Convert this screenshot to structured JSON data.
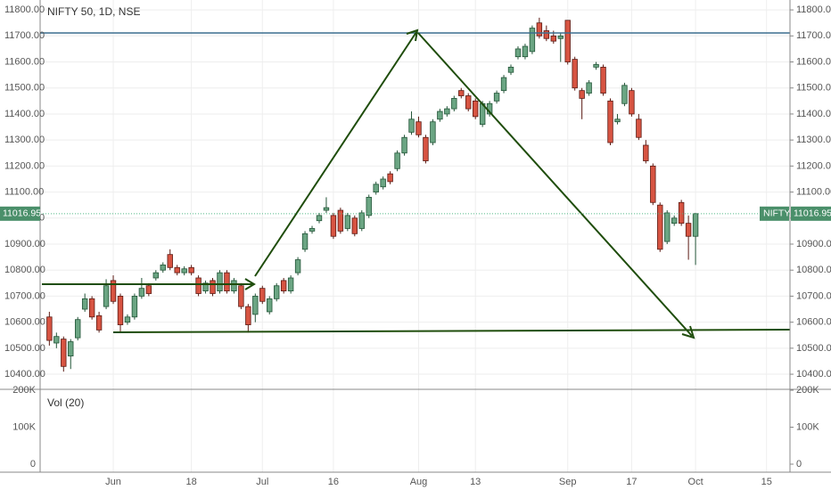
{
  "chart_data": {
    "type": "candlestick",
    "title": "NIFTY 50, 1D, NSE",
    "symbol_tag": "NIFTY",
    "last": {
      "value": 11016.95,
      "label": "11016.95"
    },
    "up_color": "#6ba583",
    "down_color": "#d75442",
    "x": [
      -9,
      -8,
      -7,
      -6,
      -5,
      -4,
      -3,
      -2,
      -1,
      0,
      1,
      2,
      3,
      4,
      5,
      6,
      7,
      8,
      9,
      10,
      11,
      12,
      13,
      14,
      15,
      16,
      17,
      18,
      19,
      20,
      21,
      22,
      23,
      24,
      25,
      26,
      27,
      28,
      29,
      30,
      31,
      32,
      33,
      34,
      35,
      36,
      37,
      38,
      39,
      40,
      41,
      42,
      43,
      44,
      45,
      46,
      47,
      48,
      49,
      50,
      51,
      52,
      53,
      54,
      55,
      56,
      57,
      58,
      59,
      60,
      61,
      62,
      63,
      64,
      65,
      66,
      67,
      68,
      69,
      70,
      71,
      72,
      73,
      74,
      75,
      76,
      77,
      78,
      79,
      80,
      81,
      82
    ],
    "open": [
      10620,
      10520,
      10535,
      10470,
      10540,
      10650,
      10690,
      10625,
      10660,
      10760,
      10700,
      10600,
      10620,
      10700,
      10740,
      10770,
      10800,
      10860,
      10810,
      10790,
      10810,
      10770,
      10720,
      10760,
      10720,
      10790,
      10720,
      10740,
      10660,
      10630,
      10730,
      10640,
      10690,
      10760,
      10720,
      10790,
      10880,
      10950,
      10990,
      11030,
      11010,
      11030,
      10960,
      11000,
      10960,
      11010,
      11100,
      11120,
      11170,
      11190,
      11250,
      11330,
      11370,
      11310,
      11290,
      11380,
      11400,
      11420,
      11490,
      11470,
      11450,
      11360,
      11400,
      11450,
      11490,
      11560,
      11620,
      11620,
      11640,
      11750,
      11720,
      11700,
      11690,
      11760,
      11610,
      11490,
      11480,
      11580,
      11580,
      11450,
      11370,
      11440,
      11490,
      11380,
      11280,
      11200,
      11050,
      10910,
      10980,
      11060,
      10980,
      10930
    ],
    "high": [
      10640,
      10560,
      10545,
      10535,
      10620,
      10710,
      10700,
      10640,
      10765,
      10780,
      10710,
      10630,
      10710,
      10770,
      10750,
      10800,
      10830,
      10880,
      10820,
      10815,
      10820,
      10780,
      10760,
      10770,
      10800,
      10800,
      10770,
      10750,
      10670,
      10710,
      10740,
      10700,
      10750,
      10770,
      10780,
      10850,
      10950,
      10970,
      11020,
      11080,
      11020,
      11040,
      11020,
      11010,
      11030,
      11090,
      11140,
      11160,
      11180,
      11260,
      11320,
      11410,
      11390,
      11320,
      11380,
      11420,
      11430,
      11470,
      11500,
      11480,
      11460,
      11450,
      11450,
      11490,
      11550,
      11590,
      11660,
      11670,
      11740,
      11770,
      11740,
      11720,
      11710,
      11760,
      11620,
      11500,
      11530,
      11600,
      11590,
      11460,
      11400,
      11520,
      11500,
      11400,
      11300,
      11210,
      11060,
      11030,
      11010,
      11070,
      11010,
      11020
    ],
    "low": [
      10510,
      10500,
      10410,
      10420,
      10530,
      10640,
      10610,
      10560,
      10650,
      10670,
      10560,
      10590,
      10610,
      10690,
      10700,
      10760,
      10790,
      10800,
      10780,
      10780,
      10780,
      10700,
      10710,
      10700,
      10710,
      10710,
      10710,
      10650,
      10560,
      10600,
      10670,
      10630,
      10680,
      10710,
      10710,
      10780,
      10870,
      10940,
      10980,
      11020,
      10920,
      10940,
      10950,
      10930,
      10950,
      11000,
      11090,
      11110,
      11130,
      11180,
      11240,
      11320,
      11310,
      11210,
      11280,
      11370,
      11390,
      11410,
      11460,
      11410,
      11380,
      11350,
      11390,
      11440,
      11480,
      11550,
      11610,
      11610,
      11630,
      11690,
      11680,
      11670,
      11600,
      11590,
      11490,
      11380,
      11470,
      11570,
      11470,
      11280,
      11360,
      11430,
      11390,
      11300,
      11210,
      11050,
      10870,
      10900,
      10970,
      10970,
      10840,
      10820
    ],
    "close": [
      10530,
      10545,
      10430,
      10525,
      10610,
      10690,
      10620,
      10570,
      10740,
      10680,
      10590,
      10620,
      10700,
      10730,
      10710,
      10790,
      10820,
      10810,
      10790,
      10805,
      10790,
      10710,
      10750,
      10710,
      10790,
      10720,
      10760,
      10660,
      10590,
      10700,
      10680,
      10690,
      10740,
      10720,
      10770,
      10840,
      10940,
      10960,
      11010,
      11040,
      10930,
      10950,
      11010,
      10940,
      11020,
      11080,
      11130,
      11150,
      11140,
      11250,
      11310,
      11380,
      11320,
      11220,
      11370,
      11410,
      11420,
      11460,
      11470,
      11420,
      11390,
      11440,
      11440,
      11480,
      11540,
      11580,
      11650,
      11660,
      11730,
      11700,
      11690,
      11680,
      11700,
      11600,
      11500,
      11460,
      11520,
      11590,
      11480,
      11290,
      11380,
      11510,
      11400,
      11310,
      11220,
      11060,
      10880,
      11020,
      11000,
      10980,
      10930,
      11016.95
    ],
    "xlim": [
      -10.3,
      95.3
    ],
    "xticks": [
      {
        "value": 0,
        "label": "Jun"
      },
      {
        "value": 11,
        "label": "18"
      },
      {
        "value": 21,
        "label": "Jul"
      },
      {
        "value": 31,
        "label": "16"
      },
      {
        "value": 43,
        "label": "Aug"
      },
      {
        "value": 51,
        "label": "13"
      },
      {
        "value": 64,
        "label": "Sep"
      },
      {
        "value": 73,
        "label": "17"
      },
      {
        "value": 82,
        "label": "Oct"
      },
      {
        "value": 92,
        "label": "15"
      }
    ],
    "ylim": [
      10342,
      11838
    ],
    "yticks": [
      {
        "value": 10400,
        "label": "10400.00"
      },
      {
        "value": 10500,
        "label": "10500.00"
      },
      {
        "value": 10600,
        "label": "10600.00"
      },
      {
        "value": 10700,
        "label": "10700.00"
      },
      {
        "value": 10800,
        "label": "10800.00"
      },
      {
        "value": 10900,
        "label": "10900.00"
      },
      {
        "value": 11000,
        "label": "11000.00"
      },
      {
        "value": 11100,
        "label": "11100.00"
      },
      {
        "value": 11200,
        "label": "11200.00"
      },
      {
        "value": 11300,
        "label": "11300.00"
      },
      {
        "value": 11400,
        "label": "11400.00"
      },
      {
        "value": 11500,
        "label": "11500.00"
      },
      {
        "value": 11600,
        "label": "11600.00"
      },
      {
        "value": 11700,
        "label": "11700.00"
      },
      {
        "value": 11800,
        "label": "11800.00"
      }
    ],
    "volume_title": "Vol (20)",
    "vlim": [
      0,
      200000
    ],
    "vticks": [
      {
        "value": 0,
        "label": "0"
      },
      {
        "value": 100000,
        "label": "100K"
      },
      {
        "value": 200000,
        "label": "200K"
      }
    ],
    "grid": true
  }
}
